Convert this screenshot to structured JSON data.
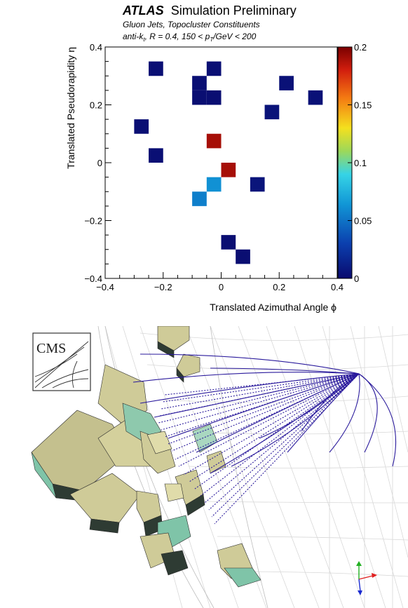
{
  "chart_data": [
    {
      "type": "heatmap",
      "title_bold": "ATLAS",
      "title": "Simulation Preliminary",
      "subtitle_line1": "Gluon Jets, Topocluster Constituents",
      "subtitle_line2_pre": "anti-k",
      "subtitle_line2_sub1": "t",
      "subtitle_line2_mid": ", R = 0.4, 150 < p",
      "subtitle_line2_sub2": "T",
      "subtitle_line2_post": "/GeV < 200",
      "xlabel": "Translated Azimuthal Angle ϕ",
      "ylabel": "Translated Pseudorapidity η",
      "xlim": [
        -0.4,
        0.4
      ],
      "ylim": [
        -0.4,
        0.4
      ],
      "bin_width": 0.05,
      "xticks": [
        "−0.4",
        "−0.2",
        "0",
        "0.2",
        "0.4"
      ],
      "yticks": [
        "−0.4",
        "−0.2",
        "0",
        "0.2",
        "0.4"
      ],
      "colorbar": {
        "range": [
          0,
          0.2
        ],
        "ticks": [
          "0",
          "0.05",
          "0.1",
          "0.15",
          "0.2"
        ]
      },
      "cells": [
        {
          "x": -0.225,
          "y": 0.325,
          "v": 0.003
        },
        {
          "x": -0.025,
          "y": 0.325,
          "v": 0.003
        },
        {
          "x": -0.075,
          "y": 0.275,
          "v": 0.003
        },
        {
          "x": 0.225,
          "y": 0.275,
          "v": 0.004
        },
        {
          "x": -0.075,
          "y": 0.225,
          "v": 0.002
        },
        {
          "x": -0.025,
          "y": 0.225,
          "v": 0.002
        },
        {
          "x": 0.325,
          "y": 0.225,
          "v": 0.004
        },
        {
          "x": 0.175,
          "y": 0.175,
          "v": 0.005
        },
        {
          "x": -0.275,
          "y": 0.125,
          "v": 0.003
        },
        {
          "x": -0.025,
          "y": 0.075,
          "v": 0.19
        },
        {
          "x": -0.225,
          "y": 0.025,
          "v": 0.003
        },
        {
          "x": 0.025,
          "y": -0.025,
          "v": 0.19
        },
        {
          "x": -0.025,
          "y": -0.075,
          "v": 0.062
        },
        {
          "x": 0.125,
          "y": -0.075,
          "v": 0.006
        },
        {
          "x": -0.075,
          "y": -0.125,
          "v": 0.055
        },
        {
          "x": 0.025,
          "y": -0.275,
          "v": 0.002
        },
        {
          "x": 0.075,
          "y": -0.325,
          "v": 0.002
        }
      ]
    }
  ],
  "event_display": {
    "logo_text": "CMS"
  }
}
